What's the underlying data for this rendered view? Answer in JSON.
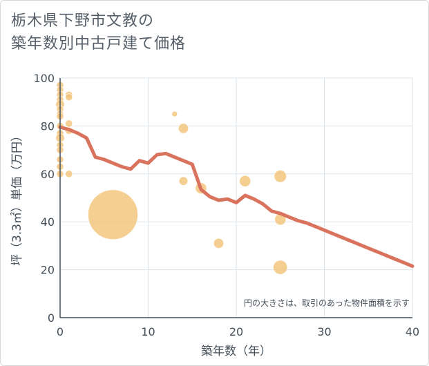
{
  "chart_data": {
    "type": "scatter",
    "title_line1": "栃木県下野市文教の",
    "title_line2": "築年数別中古戸建て価格",
    "xlabel": "築年数（年）",
    "ylabel": "坪（3.3㎡）単価（万円）",
    "xlim": [
      0,
      40
    ],
    "ylim": [
      0,
      100
    ],
    "x_ticks": [
      0,
      10,
      20,
      30,
      40
    ],
    "y_ticks": [
      0,
      20,
      40,
      60,
      80,
      100
    ],
    "note": "円の大きさは、取引のあった物件面積を示す",
    "colors": {
      "bubble": "#f3c37a",
      "line": "#d9735d",
      "grid": "#dde3ea",
      "axis": "#444e58"
    },
    "bubbles": [
      {
        "x": 0,
        "y": 97,
        "size": 2
      },
      {
        "x": 0,
        "y": 95,
        "size": 2
      },
      {
        "x": 0,
        "y": 93,
        "size": 2
      },
      {
        "x": 0,
        "y": 91,
        "size": 2
      },
      {
        "x": 0,
        "y": 89,
        "size": 3
      },
      {
        "x": 0,
        "y": 87,
        "size": 2
      },
      {
        "x": 0,
        "y": 85,
        "size": 2
      },
      {
        "x": 0,
        "y": 84,
        "size": 2
      },
      {
        "x": 0,
        "y": 80,
        "size": 2
      },
      {
        "x": 0,
        "y": 77,
        "size": 2
      },
      {
        "x": 0,
        "y": 75,
        "size": 3
      },
      {
        "x": 0,
        "y": 72,
        "size": 2
      },
      {
        "x": 0,
        "y": 70,
        "size": 2
      },
      {
        "x": 0,
        "y": 66,
        "size": 2
      },
      {
        "x": 0,
        "y": 63,
        "size": 2
      },
      {
        "x": 0,
        "y": 60,
        "size": 2
      },
      {
        "x": 1,
        "y": 93,
        "size": 2
      },
      {
        "x": 1,
        "y": 92,
        "size": 2
      },
      {
        "x": 1,
        "y": 81,
        "size": 2
      },
      {
        "x": 1,
        "y": 78,
        "size": 2
      },
      {
        "x": 1,
        "y": 60,
        "size": 2
      },
      {
        "x": 6,
        "y": 43,
        "size": 100
      },
      {
        "x": 13,
        "y": 85,
        "size": 1
      },
      {
        "x": 14,
        "y": 79,
        "size": 4
      },
      {
        "x": 14,
        "y": 57,
        "size": 3
      },
      {
        "x": 16,
        "y": 54,
        "size": 5
      },
      {
        "x": 18,
        "y": 31,
        "size": 4
      },
      {
        "x": 21,
        "y": 57,
        "size": 5
      },
      {
        "x": 25,
        "y": 59,
        "size": 6
      },
      {
        "x": 25,
        "y": 41,
        "size": 5
      },
      {
        "x": 25,
        "y": 21,
        "size": 8
      }
    ],
    "trend": {
      "x": [
        0,
        1,
        2,
        3,
        4,
        5,
        6,
        7,
        8,
        9,
        10,
        11,
        12,
        13,
        14,
        15,
        16,
        17,
        18,
        19,
        20,
        21,
        22,
        23,
        24,
        25,
        26,
        27,
        28,
        29,
        30,
        31,
        32,
        33,
        34,
        35,
        36,
        37,
        38,
        39,
        40
      ],
      "y": [
        79.5,
        78.5,
        77,
        75,
        67,
        66,
        64.5,
        63,
        62,
        65.5,
        64.5,
        68,
        68.5,
        67,
        65.5,
        64,
        53.5,
        50.5,
        49,
        49.5,
        48,
        51,
        49.5,
        47.5,
        44.5,
        43.5,
        42,
        40.5,
        39.5,
        38,
        36.5,
        35,
        33.5,
        32,
        30.5,
        29,
        27.5,
        26,
        24.5,
        23,
        21.5
      ]
    }
  }
}
